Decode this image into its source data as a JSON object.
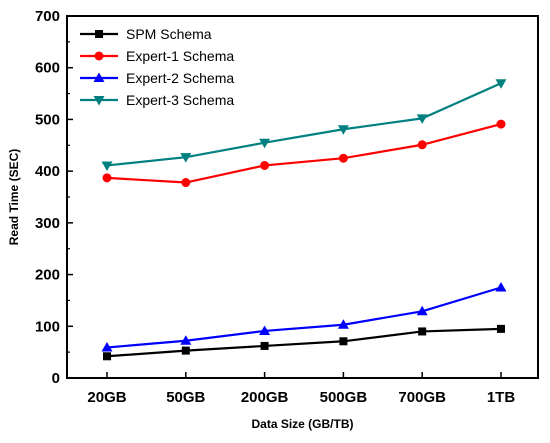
{
  "chart_data": {
    "type": "line",
    "title": "",
    "xlabel": "Data Size (GB/TB)",
    "ylabel": "Read Time (SEC)",
    "categories": [
      "20GB",
      "50GB",
      "200GB",
      "500GB",
      "700GB",
      "1TB"
    ],
    "ylim": [
      0,
      700
    ],
    "yticks": [
      0,
      100,
      200,
      300,
      400,
      500,
      600,
      700
    ],
    "grid": false,
    "legend_position": "top-left",
    "series": [
      {
        "name": "SPM Schema",
        "color": "#000000",
        "marker": "square",
        "values": [
          42,
          53,
          62,
          71,
          90,
          95
        ]
      },
      {
        "name": "Expert-1 Schema",
        "color": "#ff0000",
        "marker": "circle",
        "values": [
          387,
          378,
          411,
          425,
          451,
          491
        ]
      },
      {
        "name": "Expert-2 Schema",
        "color": "#0000ff",
        "marker": "triangle-up",
        "values": [
          59,
          72,
          91,
          103,
          129,
          175
        ]
      },
      {
        "name": "Expert-3 Schema",
        "color": "#008080",
        "marker": "triangle-down",
        "values": [
          411,
          427,
          455,
          481,
          502,
          570
        ]
      }
    ]
  }
}
